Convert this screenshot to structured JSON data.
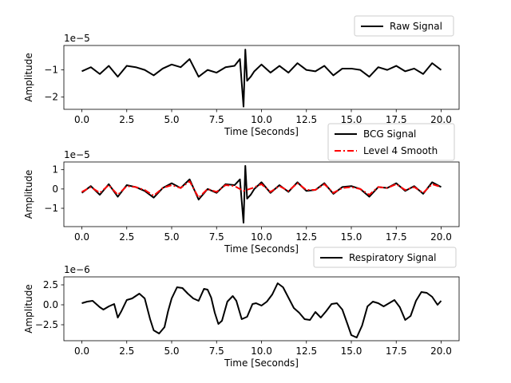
{
  "chart_data": [
    {
      "type": "line",
      "xlabel": "Time [Seconds]",
      "ylabel": "Amplitude",
      "offset_text": "1e−5",
      "xlim": [
        -1,
        21
      ],
      "ylim": [
        -2.45,
        -0.1
      ],
      "x_ticks": [
        0,
        2.5,
        5,
        7.5,
        10,
        12.5,
        15,
        17.5,
        20
      ],
      "x_tick_labels": [
        "0.0",
        "2.5",
        "5.0",
        "7.5",
        "10.0",
        "12.5",
        "15.0",
        "17.5",
        "20.0"
      ],
      "y_ticks": [
        -2,
        -1
      ],
      "y_tick_labels": [
        "−2",
        "−1"
      ],
      "legend_position": "above-right",
      "series": [
        {
          "name": "Raw Signal",
          "color": "#000000",
          "style": "solid",
          "x": [
            0,
            0.5,
            1,
            1.5,
            2,
            2.5,
            3,
            3.5,
            4,
            4.5,
            5,
            5.5,
            6,
            6.5,
            7,
            7.5,
            8,
            8.5,
            8.8,
            9,
            9.1,
            9.2,
            9.4,
            9.6,
            10,
            10.5,
            11,
            11.5,
            12,
            12.5,
            13,
            13.5,
            14,
            14.5,
            15,
            15.5,
            16,
            16.5,
            17,
            17.5,
            18,
            18.5,
            19,
            19.5,
            20
          ],
          "values": [
            -1.05,
            -0.9,
            -1.15,
            -0.85,
            -1.25,
            -0.85,
            -0.9,
            -1.0,
            -1.2,
            -0.95,
            -0.8,
            -0.9,
            -0.6,
            -1.25,
            -1.0,
            -1.1,
            -0.9,
            -0.85,
            -0.6,
            -2.35,
            -0.25,
            -1.4,
            -1.25,
            -1.05,
            -0.8,
            -1.1,
            -0.85,
            -1.1,
            -0.75,
            -1.0,
            -1.05,
            -0.85,
            -1.2,
            -0.95,
            -0.95,
            -1.0,
            -1.25,
            -0.9,
            -1.0,
            -0.85,
            -1.05,
            -0.95,
            -1.15,
            -0.75,
            -1.0
          ]
        }
      ]
    },
    {
      "type": "line",
      "xlabel": "Time [Seconds]",
      "ylabel": "Amplitude",
      "offset_text": "1e−5",
      "xlim": [
        -1,
        21
      ],
      "ylim": [
        -1.95,
        1.4
      ],
      "x_ticks": [
        0,
        2.5,
        5,
        7.5,
        10,
        12.5,
        15,
        17.5,
        20
      ],
      "x_tick_labels": [
        "0.0",
        "2.5",
        "5.0",
        "7.5",
        "10.0",
        "12.5",
        "15.0",
        "17.5",
        "20.0"
      ],
      "y_ticks": [
        -1,
        0,
        1
      ],
      "y_tick_labels": [
        "−1",
        "0",
        "1"
      ],
      "legend_position": "above-right",
      "series": [
        {
          "name": "BCG Signal",
          "color": "#000000",
          "style": "solid",
          "x": [
            0,
            0.5,
            1,
            1.5,
            2,
            2.5,
            3,
            3.5,
            4,
            4.5,
            5,
            5.5,
            6,
            6.5,
            7,
            7.5,
            8,
            8.5,
            8.8,
            9,
            9.1,
            9.2,
            9.4,
            9.6,
            10,
            10.5,
            11,
            11.5,
            12,
            12.5,
            13,
            13.5,
            14,
            14.5,
            15,
            15.5,
            16,
            16.5,
            17,
            17.5,
            18,
            18.5,
            19,
            19.5,
            20
          ],
          "values": [
            -0.2,
            0.15,
            -0.3,
            0.25,
            -0.4,
            0.2,
            0.1,
            -0.1,
            -0.45,
            0.05,
            0.3,
            0.05,
            0.5,
            -0.55,
            0.0,
            -0.2,
            0.25,
            0.2,
            0.5,
            -1.75,
            1.2,
            -0.5,
            -0.3,
            0.0,
            0.35,
            -0.2,
            0.2,
            -0.15,
            0.35,
            -0.1,
            -0.05,
            0.3,
            -0.25,
            0.1,
            0.15,
            0.0,
            -0.4,
            0.1,
            0.05,
            0.3,
            -0.1,
            0.15,
            -0.25,
            0.35,
            0.1
          ]
        },
        {
          "name": "Level 4 Smooth",
          "color": "#ff0000",
          "style": "dashdot",
          "x": [
            0,
            0.5,
            1,
            1.5,
            2,
            2.5,
            3,
            3.5,
            4,
            4.5,
            5,
            5.5,
            6,
            6.5,
            7,
            7.5,
            8,
            8.5,
            9,
            9.5,
            10,
            10.5,
            11,
            11.5,
            12,
            12.5,
            13,
            13.5,
            14,
            14.5,
            15,
            15.5,
            16,
            16.5,
            17,
            17.5,
            18,
            18.5,
            19,
            19.5,
            20
          ],
          "values": [
            -0.15,
            0.1,
            -0.2,
            0.2,
            -0.3,
            0.15,
            0.1,
            -0.05,
            -0.35,
            0.05,
            0.2,
            0.05,
            0.4,
            -0.45,
            0.0,
            -0.15,
            0.2,
            0.15,
            -0.1,
            0.05,
            0.25,
            -0.15,
            0.15,
            -0.1,
            0.3,
            -0.05,
            -0.05,
            0.25,
            -0.2,
            0.05,
            0.1,
            0.0,
            -0.3,
            0.1,
            0.05,
            0.25,
            -0.05,
            0.1,
            -0.2,
            0.25,
            0.1
          ]
        }
      ]
    },
    {
      "type": "line",
      "xlabel": "Time [Seconds]",
      "ylabel": "Amplitude",
      "offset_text": "1e−6",
      "xlim": [
        -1,
        21
      ],
      "ylim": [
        -4.5,
        3.5
      ],
      "x_ticks": [
        0,
        2.5,
        5,
        7.5,
        10,
        12.5,
        15,
        17.5,
        20
      ],
      "x_tick_labels": [
        "0.0",
        "2.5",
        "5.0",
        "7.5",
        "10.0",
        "12.5",
        "15.0",
        "17.5",
        "20.0"
      ],
      "y_ticks": [
        -2.5,
        0,
        2.5
      ],
      "y_tick_labels": [
        "−2.5",
        "0.0",
        "2.5"
      ],
      "legend_position": "above-right",
      "series": [
        {
          "name": "Respiratory Signal",
          "color": "#000000",
          "style": "solid",
          "x": [
            0,
            0.3,
            0.6,
            1.0,
            1.2,
            1.5,
            1.8,
            2.0,
            2.2,
            2.5,
            2.8,
            3.0,
            3.2,
            3.5,
            3.8,
            4.0,
            4.3,
            4.6,
            4.8,
            5.0,
            5.3,
            5.6,
            5.9,
            6.2,
            6.5,
            6.8,
            7.0,
            7.2,
            7.4,
            7.6,
            7.8,
            8.1,
            8.4,
            8.6,
            8.9,
            9.2,
            9.5,
            9.7,
            10.0,
            10.3,
            10.6,
            10.9,
            11.2,
            11.5,
            11.8,
            12.1,
            12.4,
            12.7,
            13.0,
            13.3,
            13.6,
            13.9,
            14.2,
            14.5,
            14.8,
            15.0,
            15.3,
            15.6,
            15.9,
            16.2,
            16.5,
            16.8,
            17.1,
            17.4,
            17.7,
            18.0,
            18.3,
            18.6,
            18.9,
            19.2,
            19.5,
            19.8,
            20.0
          ],
          "values": [
            0.2,
            0.4,
            0.5,
            -0.3,
            -0.6,
            -0.2,
            0.1,
            -1.6,
            -0.8,
            0.6,
            0.8,
            1.1,
            1.4,
            0.8,
            -1.8,
            -3.2,
            -3.6,
            -2.8,
            -0.8,
            0.8,
            2.2,
            2.1,
            1.4,
            0.8,
            0.5,
            2.0,
            1.9,
            0.9,
            -1.0,
            -2.4,
            -2.0,
            0.4,
            1.1,
            0.5,
            -1.8,
            -1.5,
            0.1,
            0.2,
            -0.1,
            0.4,
            1.3,
            2.7,
            2.2,
            0.9,
            -0.4,
            -1.0,
            -1.8,
            -1.9,
            -0.9,
            -1.6,
            -0.8,
            0.1,
            0.2,
            -0.6,
            -2.5,
            -3.8,
            -4.1,
            -2.6,
            -0.2,
            0.4,
            0.2,
            -0.2,
            0.2,
            0.6,
            -0.3,
            -1.9,
            -1.4,
            0.5,
            1.6,
            1.5,
            1.0,
            0.0,
            0.5
          ]
        }
      ]
    }
  ]
}
